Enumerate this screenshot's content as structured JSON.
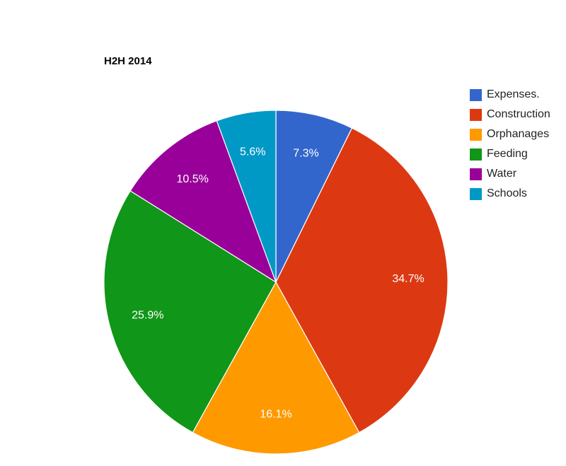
{
  "chart_data": {
    "type": "pie",
    "title": "H2H 2014",
    "legend_position": "right",
    "slices": [
      {
        "name": "Expenses.",
        "value": 7.3,
        "label": "7.3%",
        "color": "#3366cc"
      },
      {
        "name": "Construction",
        "value": 34.7,
        "label": "34.7%",
        "color": "#dc3912"
      },
      {
        "name": "Orphanages",
        "value": 16.1,
        "label": "16.1%",
        "color": "#ff9900"
      },
      {
        "name": "Feeding",
        "value": 25.9,
        "label": "25.9%",
        "color": "#109618"
      },
      {
        "name": "Water",
        "value": 10.5,
        "label": "10.5%",
        "color": "#990099"
      },
      {
        "name": "Schools",
        "value": 5.6,
        "label": "5.6%",
        "color": "#0099c6"
      }
    ]
  }
}
